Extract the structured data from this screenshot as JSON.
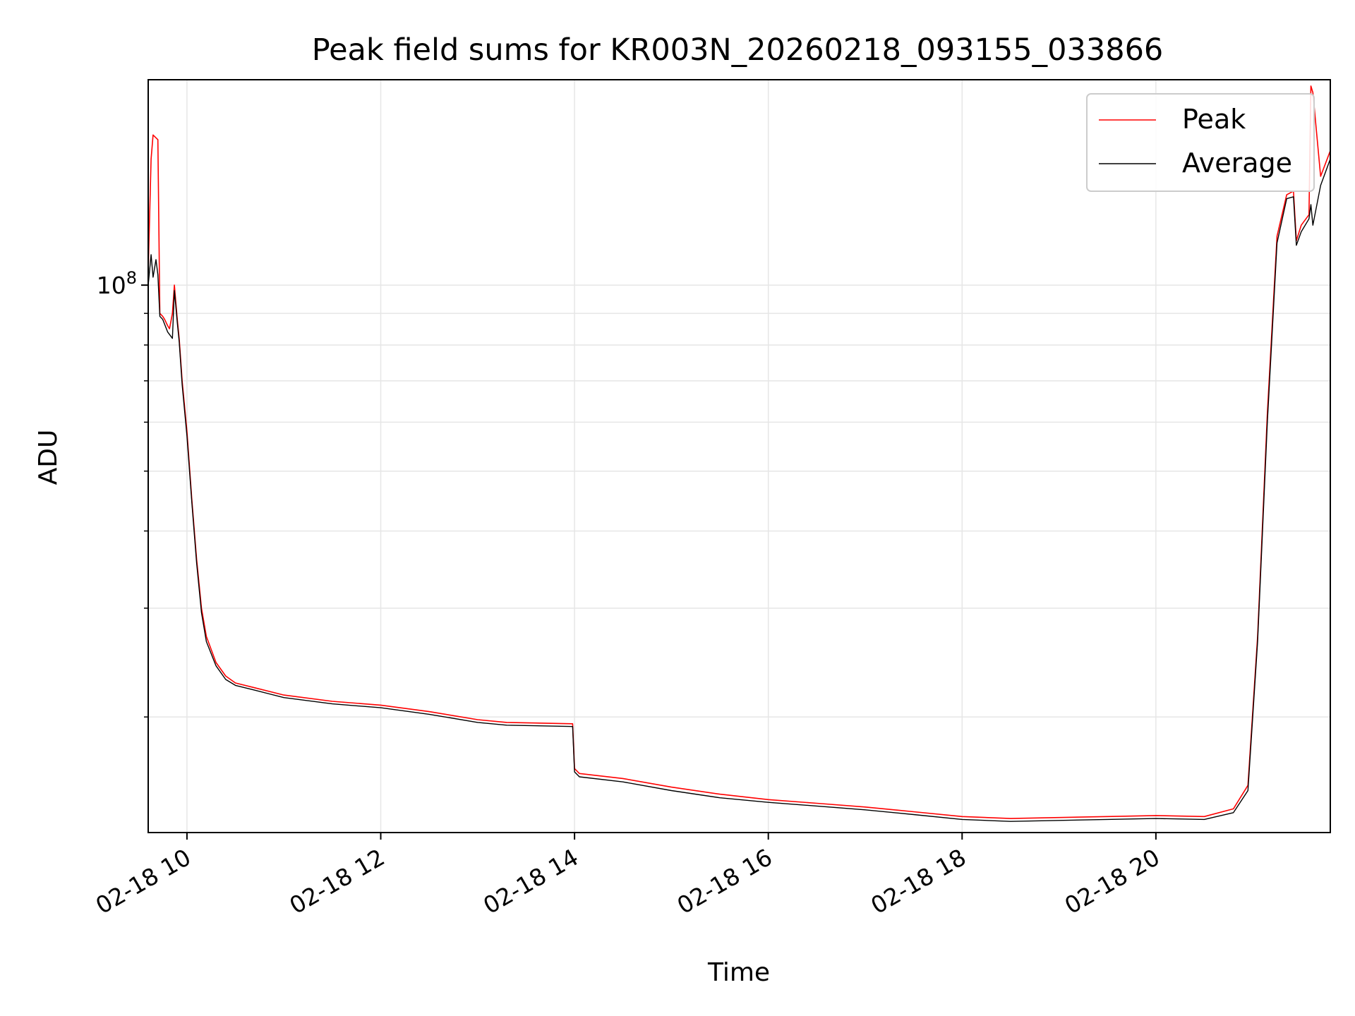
{
  "chart_data": {
    "type": "line",
    "title": "Peak field sums for KR003N_20260218_093155_033866",
    "xlabel": "Time",
    "ylabel": "ADU",
    "yscale": "log",
    "xlim": [
      9.6,
      21.8
    ],
    "ylim": [
      13000000,
      215000000
    ],
    "x_ticks": [
      10,
      12,
      14,
      16,
      18,
      20
    ],
    "x_tick_labels": [
      "02-18 10",
      "02-18 12",
      "02-18 14",
      "02-18 16",
      "02-18 18",
      "02-18 20"
    ],
    "y_major_tick": {
      "value": 100000000,
      "base": "10",
      "exp": "8"
    },
    "y_minor_ticks": [
      20000000,
      30000000,
      40000000,
      50000000,
      60000000,
      70000000,
      80000000,
      90000000
    ],
    "grid": true,
    "legend_position": "top-right",
    "colors": {
      "peak": "#ff0000",
      "average": "#000000",
      "grid": "#e6e6e6"
    },
    "series": [
      {
        "name": "Peak",
        "color": "#ff0000",
        "x": [
          9.6,
          9.63,
          9.65,
          9.7,
          9.72,
          9.75,
          9.77,
          9.8,
          9.82,
          9.85,
          9.87,
          9.9,
          9.92,
          9.95,
          10.0,
          10.05,
          10.1,
          10.15,
          10.2,
          10.3,
          10.4,
          10.5,
          10.7,
          11.0,
          11.5,
          12.0,
          12.5,
          13.0,
          13.3,
          13.98,
          14.0,
          14.05,
          14.5,
          15.0,
          15.5,
          16.0,
          16.5,
          17.0,
          17.5,
          18.0,
          18.5,
          19.0,
          19.5,
          20.0,
          20.5,
          20.8,
          20.95,
          21.05,
          21.15,
          21.25,
          21.35,
          21.42,
          21.45,
          21.5,
          21.58,
          21.6,
          21.62,
          21.7,
          21.8
        ],
        "y": [
          105000000,
          160000000,
          175000000,
          172000000,
          90000000,
          89000000,
          88000000,
          86000000,
          85000000,
          90000000,
          100000000,
          88000000,
          82000000,
          70000000,
          58000000,
          45000000,
          36000000,
          30000000,
          27000000,
          24500000,
          23300000,
          22700000,
          22300000,
          21700000,
          21200000,
          20900000,
          20400000,
          19800000,
          19600000,
          19500000,
          16500000,
          16200000,
          15900000,
          15400000,
          15000000,
          14700000,
          14500000,
          14300000,
          14050000,
          13800000,
          13700000,
          13750000,
          13800000,
          13850000,
          13800000,
          14200000,
          15500000,
          27000000,
          62000000,
          120000000,
          140000000,
          142000000,
          118000000,
          125000000,
          130000000,
          210000000,
          205000000,
          150000000,
          165000000
        ]
      },
      {
        "name": "Average",
        "color": "#000000",
        "x": [
          9.6,
          9.63,
          9.65,
          9.68,
          9.7,
          9.72,
          9.75,
          9.8,
          9.85,
          9.87,
          9.9,
          9.92,
          9.95,
          10.0,
          10.05,
          10.1,
          10.15,
          10.2,
          10.3,
          10.4,
          10.5,
          10.7,
          11.0,
          11.5,
          12.0,
          12.5,
          13.0,
          13.3,
          13.98,
          14.0,
          14.05,
          14.5,
          15.0,
          15.5,
          16.0,
          16.5,
          17.0,
          17.5,
          18.0,
          18.5,
          19.0,
          19.5,
          20.0,
          20.5,
          20.8,
          20.95,
          21.05,
          21.15,
          21.25,
          21.35,
          21.42,
          21.45,
          21.5,
          21.58,
          21.6,
          21.62,
          21.7,
          21.8
        ],
        "y": [
          100000000,
          112000000,
          103000000,
          110000000,
          104000000,
          89000000,
          88000000,
          84000000,
          82000000,
          98000000,
          87000000,
          81000000,
          69000000,
          57000000,
          44500000,
          35500000,
          29500000,
          26500000,
          24200000,
          23000000,
          22500000,
          22100000,
          21500000,
          21000000,
          20700000,
          20200000,
          19600000,
          19400000,
          19300000,
          16300000,
          16000000,
          15700000,
          15200000,
          14800000,
          14550000,
          14350000,
          14150000,
          13900000,
          13650000,
          13550000,
          13600000,
          13650000,
          13700000,
          13650000,
          14000000,
          15200000,
          26500000,
          60000000,
          117000000,
          138000000,
          139000000,
          116000000,
          122000000,
          128000000,
          135000000,
          125000000,
          145000000,
          160000000
        ]
      }
    ]
  }
}
